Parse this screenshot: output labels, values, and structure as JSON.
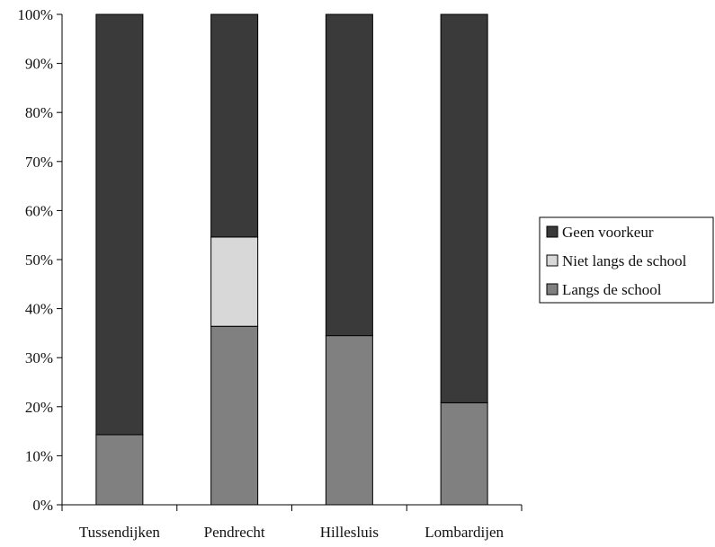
{
  "colors": {
    "Geen voorkeur": "#3a3a3a",
    "Niet langs de school": "#d8d8d8",
    "Langs de school": "#808080",
    "axis": "#000000",
    "bar_stroke": "#000000"
  },
  "chart_data": {
    "type": "bar",
    "stacked": true,
    "percent_stacked": true,
    "categories": [
      "Tussendijken",
      "Pendrecht",
      "Hillesluis",
      "Lombardijen"
    ],
    "series": [
      {
        "name": "Langs de school",
        "values": [
          14.3,
          36.4,
          34.5,
          20.8
        ]
      },
      {
        "name": "Niet langs de school",
        "values": [
          0,
          18.2,
          0,
          0
        ]
      },
      {
        "name": "Geen voorkeur",
        "values": [
          85.7,
          45.4,
          65.5,
          79.2
        ]
      }
    ],
    "legend_order": [
      "Geen voorkeur",
      "Niet langs de school",
      "Langs de school"
    ],
    "yticks": [
      "0%",
      "10%",
      "20%",
      "30%",
      "40%",
      "50%",
      "60%",
      "70%",
      "80%",
      "90%",
      "100%"
    ],
    "ylim": [
      0,
      100
    ],
    "title": "",
    "xlabel": "",
    "ylabel": "",
    "grid": false,
    "legend_position": "right"
  }
}
